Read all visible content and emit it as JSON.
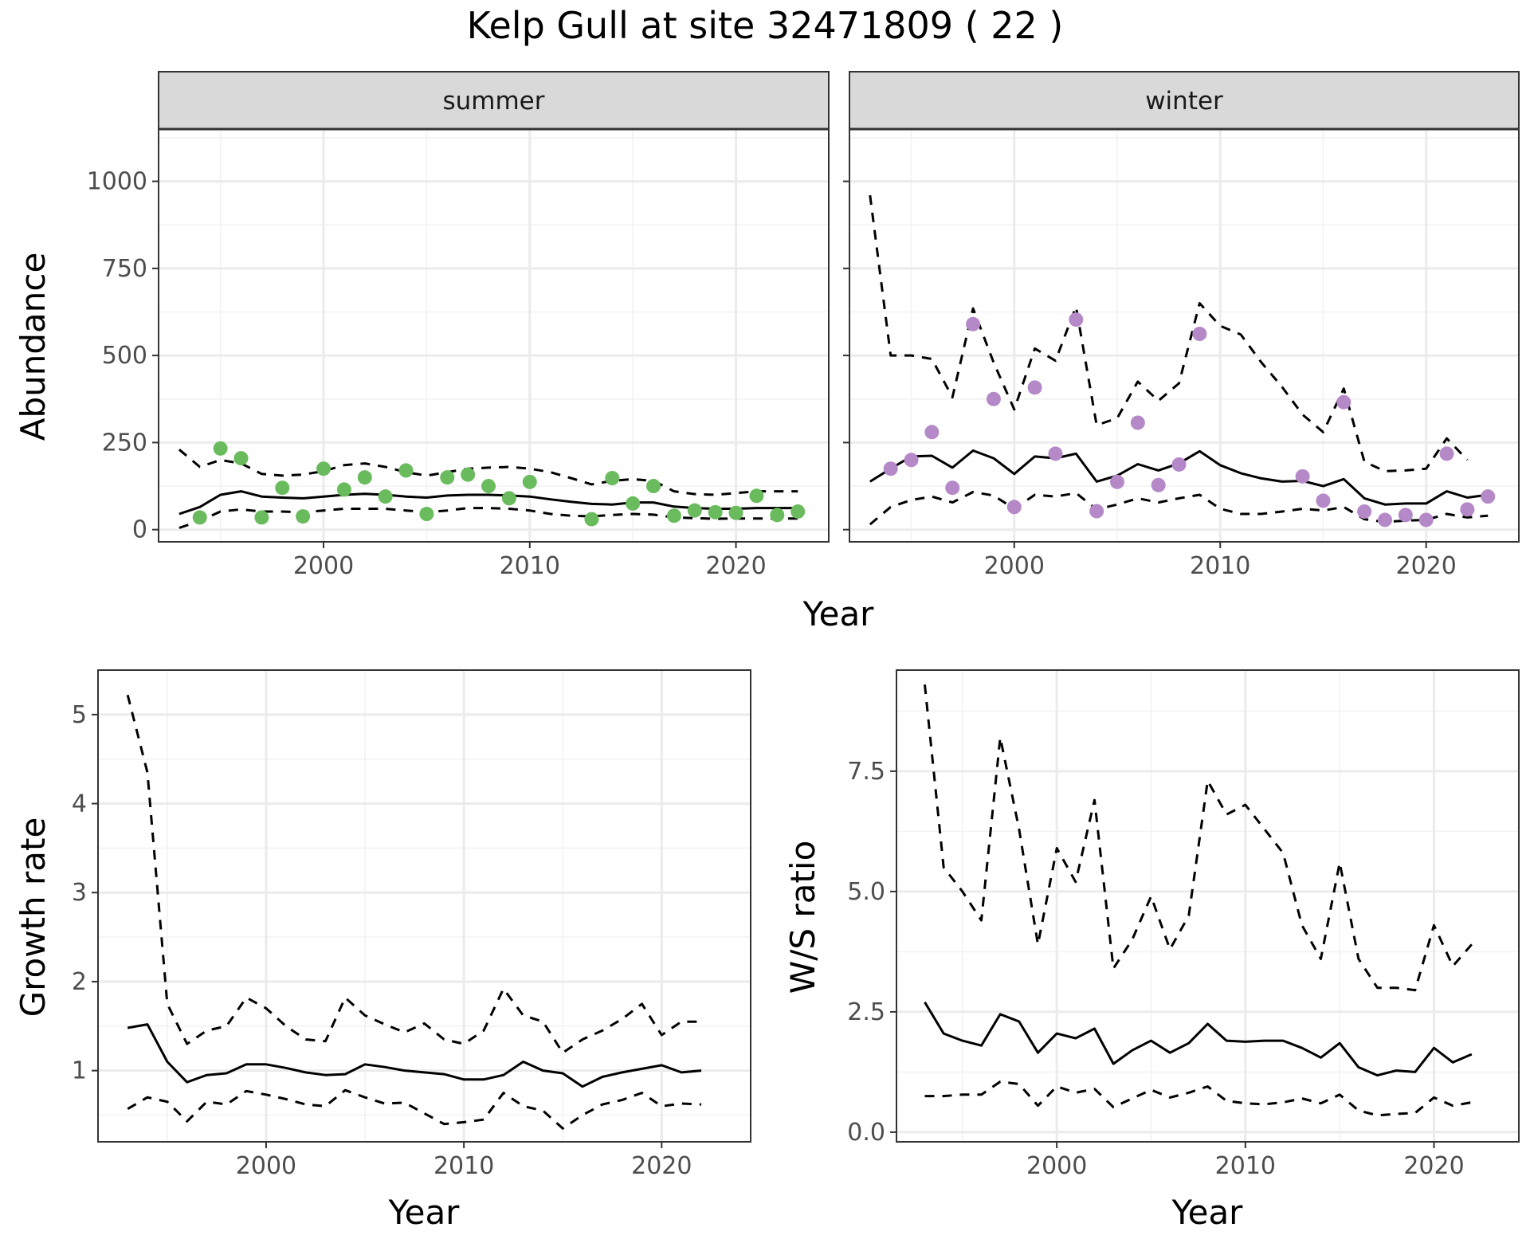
{
  "title": "Kelp Gull at site 32471809 ( 22 )",
  "colors": {
    "summer_points": "#6abb5d",
    "winter_points": "#b589c8",
    "lines": "#000000"
  },
  "chart_data": [
    {
      "type": "line",
      "facet": "summer",
      "strip_label": "summer",
      "ylabel": "Abundance",
      "xlabel": "Year",
      "xlim": [
        1992,
        2024.5
      ],
      "ylim": [
        -35,
        1150
      ],
      "x_ticks": [
        2000,
        2010,
        2020
      ],
      "y_ticks": [
        0,
        250,
        500,
        750,
        1000
      ],
      "grid": true,
      "points": {
        "color": "#6abb5d",
        "x": [
          1994,
          1995,
          1996,
          1997,
          1998,
          1999,
          2000,
          2001,
          2002,
          2003,
          2004,
          2005,
          2006,
          2007,
          2008,
          2009,
          2010,
          2013,
          2014,
          2015,
          2016,
          2017,
          2018,
          2019,
          2020,
          2021,
          2022,
          2023
        ],
        "y": [
          35,
          233,
          205,
          35,
          120,
          38,
          175,
          115,
          150,
          95,
          170,
          45,
          150,
          158,
          125,
          90,
          137,
          30,
          148,
          75,
          125,
          40,
          55,
          50,
          48,
          97,
          42,
          52
        ]
      },
      "series": [
        {
          "name": "",
          "style": "solid",
          "x": [
            1993,
            1994,
            1995,
            1996,
            1997,
            1998,
            1999,
            2000,
            2001,
            2002,
            2003,
            2004,
            2005,
            2006,
            2007,
            2008,
            2009,
            2010,
            2011,
            2012,
            2013,
            2014,
            2015,
            2016,
            2017,
            2018,
            2019,
            2020,
            2021,
            2022,
            2023
          ],
          "y": [
            45,
            65,
            100,
            110,
            95,
            92,
            90,
            95,
            100,
            103,
            100,
            95,
            92,
            98,
            100,
            100,
            98,
            95,
            87,
            80,
            74,
            72,
            78,
            78,
            66,
            62,
            60,
            60,
            62,
            62,
            62
          ]
        },
        {
          "name": "",
          "style": "dashed",
          "x": [
            1993,
            1994,
            1995,
            1996,
            1997,
            1998,
            1999,
            2000,
            2001,
            2002,
            2003,
            2004,
            2005,
            2006,
            2007,
            2008,
            2009,
            2010,
            2011,
            2012,
            2013,
            2014,
            2015,
            2016,
            2017,
            2018,
            2019,
            2020,
            2021,
            2022,
            2023
          ],
          "y": [
            230,
            180,
            200,
            190,
            160,
            155,
            158,
            168,
            185,
            190,
            180,
            165,
            155,
            165,
            175,
            178,
            180,
            175,
            165,
            148,
            130,
            140,
            145,
            140,
            110,
            102,
            100,
            105,
            110,
            110,
            110
          ]
        },
        {
          "name": "",
          "style": "dashed",
          "x": [
            1993,
            1994,
            1995,
            1996,
            1997,
            1998,
            1999,
            2000,
            2001,
            2002,
            2003,
            2004,
            2005,
            2006,
            2007,
            2008,
            2009,
            2010,
            2011,
            2012,
            2013,
            2014,
            2015,
            2016,
            2017,
            2018,
            2019,
            2020,
            2021,
            2022,
            2023
          ],
          "y": [
            5,
            25,
            52,
            58,
            52,
            52,
            50,
            55,
            60,
            60,
            60,
            55,
            50,
            55,
            62,
            62,
            60,
            55,
            45,
            40,
            38,
            42,
            45,
            43,
            35,
            33,
            31,
            32,
            32,
            32,
            32
          ]
        }
      ]
    },
    {
      "type": "line",
      "facet": "winter",
      "strip_label": "winter",
      "ylabel": "",
      "xlabel": "Year",
      "xlim": [
        1992,
        2024.5
      ],
      "ylim": [
        -35,
        1150
      ],
      "x_ticks": [
        2000,
        2010,
        2020
      ],
      "y_ticks": [
        0,
        250,
        500,
        750,
        1000
      ],
      "grid": true,
      "points": {
        "color": "#b589c8",
        "x": [
          1994,
          1995,
          1996,
          1997,
          1998,
          1999,
          2000,
          2001,
          2002,
          2003,
          2004,
          2005,
          2006,
          2007,
          2008,
          2009,
          2014,
          2015,
          2016,
          2017,
          2018,
          2019,
          2020,
          2021,
          2022,
          2023
        ],
        "y": [
          175,
          200,
          280,
          120,
          590,
          375,
          65,
          408,
          218,
          603,
          53,
          137,
          307,
          128,
          187,
          562,
          153,
          83,
          366,
          52,
          28,
          42,
          28,
          218,
          58,
          95
        ]
      },
      "series": [
        {
          "name": "",
          "style": "solid",
          "x": [
            1993,
            1994,
            1995,
            1996,
            1997,
            1998,
            1999,
            2000,
            2001,
            2002,
            2003,
            2004,
            2005,
            2006,
            2007,
            2008,
            2009,
            2010,
            2011,
            2012,
            2013,
            2014,
            2015,
            2016,
            2017,
            2018,
            2019,
            2020,
            2021,
            2022,
            2023
          ],
          "y": [
            138,
            175,
            210,
            212,
            178,
            227,
            205,
            160,
            210,
            205,
            218,
            138,
            155,
            188,
            170,
            190,
            225,
            185,
            162,
            147,
            138,
            140,
            125,
            145,
            90,
            72,
            75,
            75,
            110,
            92,
            100
          ]
        },
        {
          "name": "",
          "style": "dashed",
          "x": [
            1993,
            1994,
            1995,
            1996,
            1997,
            1998,
            1999,
            2000,
            2001,
            2002,
            2003,
            2004,
            2005,
            2006,
            2007,
            2008,
            2009,
            2010,
            2011,
            2012,
            2013,
            2014,
            2015,
            2016,
            2017,
            2018,
            2019,
            2020,
            2021,
            2022
          ],
          "y": [
            960,
            500,
            500,
            490,
            380,
            635,
            480,
            345,
            520,
            485,
            640,
            300,
            320,
            425,
            370,
            420,
            650,
            585,
            560,
            480,
            410,
            330,
            280,
            405,
            195,
            168,
            170,
            175,
            262,
            200
          ]
        },
        {
          "name": "",
          "style": "dashed",
          "x": [
            1993,
            1994,
            1995,
            1996,
            1997,
            1998,
            1999,
            2000,
            2001,
            2002,
            2003,
            2004,
            2005,
            2006,
            2007,
            2008,
            2009,
            2010,
            2011,
            2012,
            2013,
            2014,
            2015,
            2016,
            2017,
            2018,
            2019,
            2020,
            2021,
            2022,
            2023
          ],
          "y": [
            15,
            65,
            85,
            95,
            78,
            108,
            98,
            60,
            100,
            95,
            105,
            58,
            72,
            90,
            78,
            90,
            100,
            60,
            45,
            45,
            52,
            60,
            55,
            65,
            30,
            22,
            26,
            28,
            45,
            35,
            40
          ]
        }
      ]
    },
    {
      "type": "line",
      "facet": "growth",
      "ylabel": "Growth rate",
      "xlabel": "Year",
      "xlim": [
        1991.5,
        2024.5
      ],
      "ylim": [
        0.2,
        5.5
      ],
      "x_ticks": [
        2000,
        2010,
        2020
      ],
      "y_ticks": [
        1,
        2,
        3,
        4,
        5
      ],
      "grid": true,
      "series": [
        {
          "name": "",
          "style": "solid",
          "x": [
            1993,
            1994,
            1995,
            1996,
            1997,
            1998,
            1999,
            2000,
            2001,
            2002,
            2003,
            2004,
            2005,
            2006,
            2007,
            2008,
            2009,
            2010,
            2011,
            2012,
            2013,
            2014,
            2015,
            2016,
            2017,
            2018,
            2019,
            2020,
            2021,
            2022
          ],
          "y": [
            1.48,
            1.52,
            1.1,
            0.87,
            0.95,
            0.97,
            1.07,
            1.07,
            1.03,
            0.98,
            0.95,
            0.96,
            1.07,
            1.04,
            1.0,
            0.98,
            0.96,
            0.9,
            0.9,
            0.95,
            1.1,
            1.0,
            0.97,
            0.82,
            0.93,
            0.98,
            1.02,
            1.06,
            0.98,
            1.0
          ]
        },
        {
          "name": "",
          "style": "dashed",
          "x": [
            1993,
            1994,
            1995,
            1996,
            1997,
            1998,
            1999,
            2000,
            2001,
            2002,
            2003,
            2004,
            2005,
            2006,
            2007,
            2008,
            2009,
            2010,
            2011,
            2012,
            2013,
            2014,
            2015,
            2016,
            2017,
            2018,
            2019,
            2020,
            2021,
            2022
          ],
          "y": [
            5.22,
            4.35,
            1.75,
            1.3,
            1.45,
            1.5,
            1.82,
            1.7,
            1.5,
            1.35,
            1.33,
            1.82,
            1.62,
            1.52,
            1.43,
            1.53,
            1.35,
            1.3,
            1.45,
            1.92,
            1.62,
            1.55,
            1.2,
            1.35,
            1.45,
            1.58,
            1.75,
            1.4,
            1.55,
            1.55
          ]
        },
        {
          "name": "",
          "style": "dashed",
          "x": [
            1993,
            1994,
            1995,
            1996,
            1997,
            1998,
            1999,
            2000,
            2001,
            2002,
            2003,
            2004,
            2005,
            2006,
            2007,
            2008,
            2009,
            2010,
            2011,
            2012,
            2013,
            2014,
            2015,
            2016,
            2017,
            2018,
            2019,
            2020,
            2021,
            2022
          ],
          "y": [
            0.57,
            0.7,
            0.65,
            0.43,
            0.65,
            0.62,
            0.77,
            0.73,
            0.68,
            0.62,
            0.6,
            0.78,
            0.7,
            0.63,
            0.64,
            0.52,
            0.4,
            0.42,
            0.45,
            0.75,
            0.6,
            0.55,
            0.35,
            0.5,
            0.62,
            0.67,
            0.75,
            0.6,
            0.63,
            0.62
          ]
        }
      ]
    },
    {
      "type": "line",
      "facet": "ratio",
      "ylabel": "W/S ratio",
      "xlabel": "Year",
      "xlim": [
        1991.5,
        2024.5
      ],
      "ylim": [
        -0.2,
        9.6
      ],
      "x_ticks": [
        2000,
        2010,
        2020
      ],
      "y_ticks": [
        0.0,
        2.5,
        5.0,
        7.5
      ],
      "y_tick_labels": [
        "0.0",
        "2.5",
        "5.0",
        "7.5"
      ],
      "grid": true,
      "series": [
        {
          "name": "",
          "style": "solid",
          "x": [
            1993,
            1994,
            1995,
            1996,
            1997,
            1998,
            1999,
            2000,
            2001,
            2002,
            2003,
            2004,
            2005,
            2006,
            2007,
            2008,
            2009,
            2010,
            2011,
            2012,
            2013,
            2014,
            2015,
            2016,
            2017,
            2018,
            2019,
            2020,
            2021,
            2022
          ],
          "y": [
            2.7,
            2.05,
            1.9,
            1.8,
            2.45,
            2.3,
            1.65,
            2.05,
            1.95,
            2.15,
            1.42,
            1.7,
            1.9,
            1.65,
            1.85,
            2.25,
            1.9,
            1.88,
            1.9,
            1.9,
            1.75,
            1.55,
            1.85,
            1.35,
            1.18,
            1.28,
            1.25,
            1.75,
            1.45,
            1.62
          ]
        },
        {
          "name": "",
          "style": "dashed",
          "x": [
            1993,
            1994,
            1995,
            1996,
            1997,
            1998,
            1999,
            2000,
            2001,
            2002,
            2003,
            2004,
            2005,
            2006,
            2007,
            2008,
            2009,
            2010,
            2011,
            2012,
            2013,
            2014,
            2015,
            2016,
            2017,
            2018,
            2019,
            2020,
            2021,
            2022
          ],
          "y": [
            9.3,
            5.5,
            5.0,
            4.4,
            8.2,
            6.3,
            3.9,
            5.9,
            5.2,
            6.9,
            3.4,
            4.0,
            4.9,
            3.8,
            4.5,
            7.3,
            6.6,
            6.8,
            6.3,
            5.8,
            4.3,
            3.6,
            5.6,
            3.6,
            3.0,
            3.0,
            2.95,
            4.3,
            3.45,
            3.9
          ]
        },
        {
          "name": "",
          "style": "dashed",
          "x": [
            1993,
            1994,
            1995,
            1996,
            1997,
            1998,
            1999,
            2000,
            2001,
            2002,
            2003,
            2004,
            2005,
            2006,
            2007,
            2008,
            2009,
            2010,
            2011,
            2012,
            2013,
            2014,
            2015,
            2016,
            2017,
            2018,
            2019,
            2020,
            2021,
            2022
          ],
          "y": [
            0.75,
            0.75,
            0.78,
            0.78,
            1.05,
            1.0,
            0.55,
            0.95,
            0.82,
            0.9,
            0.52,
            0.7,
            0.88,
            0.72,
            0.82,
            0.95,
            0.65,
            0.6,
            0.58,
            0.62,
            0.7,
            0.6,
            0.78,
            0.45,
            0.35,
            0.38,
            0.4,
            0.72,
            0.55,
            0.62
          ]
        }
      ]
    }
  ]
}
